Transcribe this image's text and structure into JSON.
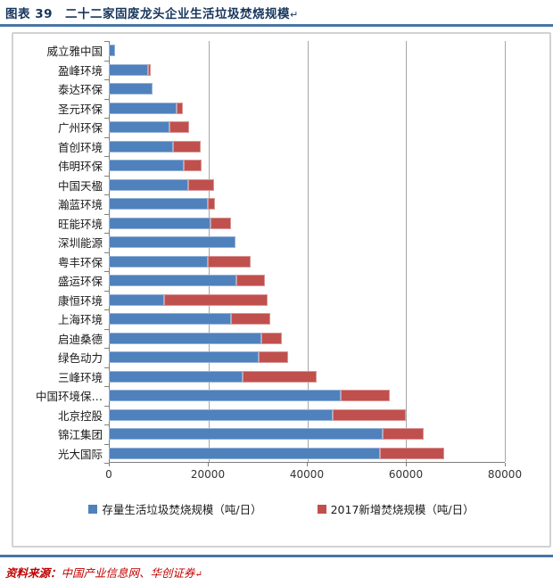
{
  "header": {
    "title": "图表 39　二十二家固废龙头企业生活垃圾焚烧规模",
    "paragraph_mark": "↵"
  },
  "chart_data": {
    "type": "bar",
    "orientation": "horizontal",
    "stacked": true,
    "categories": [
      "威立雅中国",
      "盈峰环境",
      "泰达环保",
      "圣元环保",
      "广州环保",
      "首创环境",
      "伟明环保",
      "中国天楹",
      "瀚蓝环境",
      "旺能环境",
      "深圳能源",
      "粤丰环保",
      "盛运环保",
      "康恒环境",
      "上海环境",
      "启迪桑德",
      "绿色动力",
      "三峰环境",
      "中国环境保…",
      "北京控股",
      "锦江集团",
      "光大国际"
    ],
    "series": [
      {
        "name": "存量生活垃圾焚烧规模（吨/日）",
        "color": "#4F81BD",
        "values": [
          1300,
          7900,
          8800,
          13700,
          12200,
          12900,
          15100,
          16000,
          20000,
          20500,
          25500,
          20000,
          25800,
          11100,
          24600,
          30900,
          30300,
          27000,
          46800,
          45300,
          55400,
          54800
        ]
      },
      {
        "name": "2017新增焚烧规模（吨/日）",
        "color": "#C0504D",
        "values": [
          0,
          600,
          0,
          1200,
          4100,
          5700,
          3700,
          5200,
          1400,
          4100,
          0,
          8700,
          5800,
          20900,
          8100,
          4100,
          5900,
          15000,
          9900,
          14700,
          8200,
          12900
        ]
      }
    ],
    "xlim": [
      0,
      80000
    ],
    "xticks": [
      0,
      20000,
      40000,
      60000,
      80000
    ],
    "grid": "vertical",
    "legend_position": "bottom",
    "title": "",
    "xlabel": "",
    "ylabel": ""
  },
  "legend": {
    "items": [
      {
        "label": "存量生活垃圾焚烧规模（吨/日）",
        "color": "#4F81BD"
      },
      {
        "label": "2017新增焚烧规模（吨/日）",
        "color": "#C0504D"
      }
    ]
  },
  "footer": {
    "source_label": "资料来源：",
    "source_text": "中国产业信息网、华创证券",
    "paragraph_mark": "↵"
  },
  "colors": {
    "title_text": "#17365D",
    "header_rule": "#4876A6",
    "footer_rule": "#4876A6",
    "source_text": "#C00000",
    "bar_base": "#4F81BD",
    "bar_new": "#C0504D",
    "gridline": "#A6A6A6",
    "axis_line": "#7F7F7F"
  }
}
